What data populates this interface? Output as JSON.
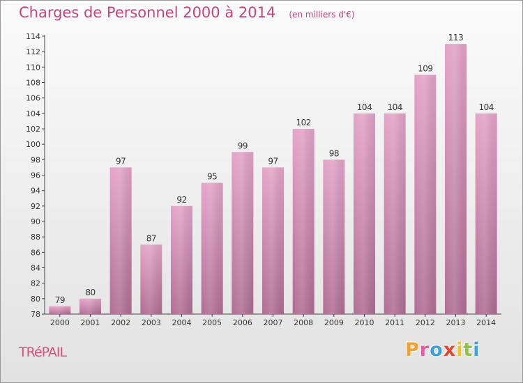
{
  "chart_data": {
    "type": "bar",
    "title": "Charges de Personnel 2000 à 2014",
    "subtitle": "(en milliers d'€)",
    "categories": [
      "2000",
      "2001",
      "2002",
      "2003",
      "2004",
      "2005",
      "2006",
      "2007",
      "2008",
      "2009",
      "2010",
      "2011",
      "2012",
      "2013",
      "2014"
    ],
    "values": [
      79,
      80,
      97,
      87,
      92,
      95,
      99,
      97,
      102,
      98,
      104,
      104,
      109,
      113,
      104
    ],
    "ylim": [
      78,
      114
    ],
    "yticks": [
      78,
      80,
      82,
      84,
      86,
      88,
      90,
      92,
      94,
      96,
      98,
      100,
      102,
      104,
      106,
      108,
      110,
      112,
      114
    ],
    "grid": false,
    "legend": "none",
    "bar_color": "#d98cb3"
  },
  "commune": "TRéPAIL",
  "brand": {
    "letters": [
      "P",
      "r",
      "o",
      "x",
      "i",
      "t",
      "i"
    ],
    "colors": [
      "#f2a02e",
      "#e85b9c",
      "#3f9fd9",
      "#e8452f",
      "#f2c12e",
      "#8cc640",
      "#3f9fd9"
    ]
  }
}
